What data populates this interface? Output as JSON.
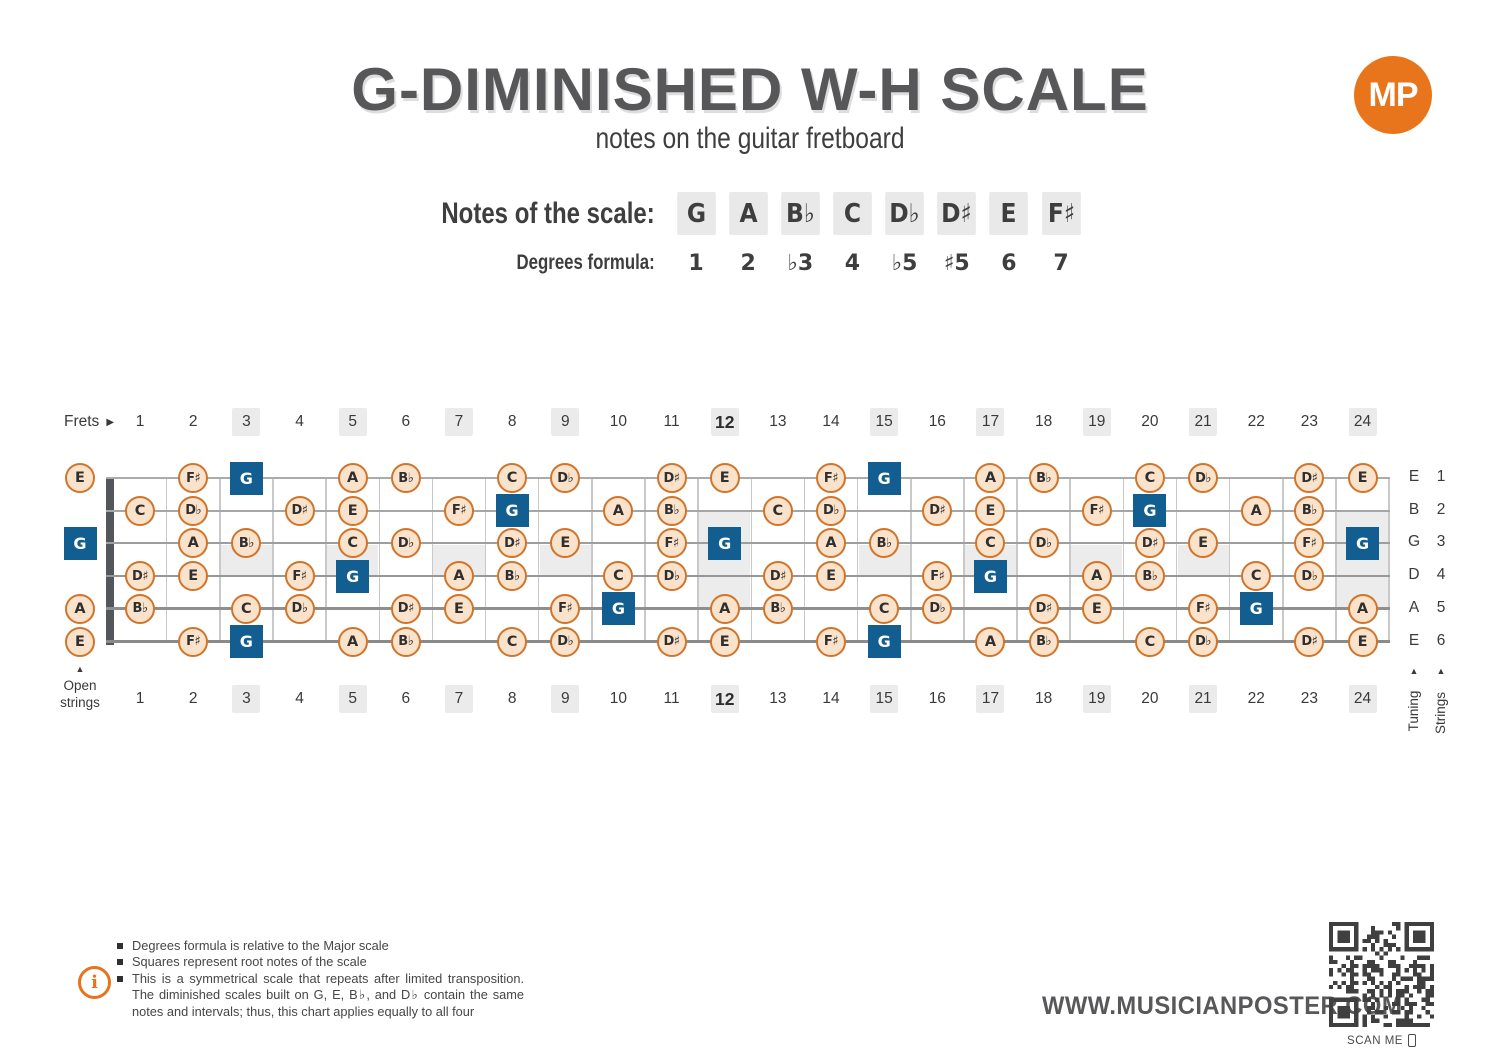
{
  "header": {
    "title": "G-DIMINISHED W-H SCALE",
    "subtitle": "notes on the guitar fretboard",
    "logo_text": "MP"
  },
  "scale": {
    "notes_label": "Notes of the scale:",
    "notes": [
      "G",
      "A",
      "B♭",
      "C",
      "D♭",
      "D♯",
      "E",
      "F♯"
    ],
    "degrees_label": "Degrees formula:",
    "degrees": [
      "1",
      "2",
      "♭3",
      "4",
      "♭5",
      "♯5",
      "6",
      "7"
    ]
  },
  "fretboard": {
    "frets_label": "Frets",
    "fret_count": 24,
    "highlight_frets": [
      3,
      5,
      7,
      9,
      12,
      15,
      17,
      19,
      21,
      24
    ],
    "bold_fret": 12,
    "single_inlay_frets": [
      3,
      5,
      7,
      9,
      15,
      17,
      19,
      21
    ],
    "double_inlay_frets": [
      12,
      24
    ],
    "open_strings_label": [
      "Open",
      "strings"
    ],
    "tuning_label": "Tuning",
    "strings_label": "Strings",
    "strings": [
      {
        "tuning": "E",
        "number": 1,
        "open": {
          "n": "E"
        },
        "notes": [
          {
            "f": 2,
            "n": "F♯"
          },
          {
            "f": 3,
            "n": "G",
            "r": true
          },
          {
            "f": 5,
            "n": "A"
          },
          {
            "f": 6,
            "n": "B♭"
          },
          {
            "f": 8,
            "n": "C"
          },
          {
            "f": 9,
            "n": "D♭"
          },
          {
            "f": 11,
            "n": "D♯"
          },
          {
            "f": 12,
            "n": "E"
          },
          {
            "f": 14,
            "n": "F♯"
          },
          {
            "f": 15,
            "n": "G",
            "r": true
          },
          {
            "f": 17,
            "n": "A"
          },
          {
            "f": 18,
            "n": "B♭"
          },
          {
            "f": 20,
            "n": "C"
          },
          {
            "f": 21,
            "n": "D♭"
          },
          {
            "f": 23,
            "n": "D♯"
          },
          {
            "f": 24,
            "n": "E"
          }
        ]
      },
      {
        "tuning": "B",
        "number": 2,
        "open": null,
        "notes": [
          {
            "f": 1,
            "n": "C"
          },
          {
            "f": 2,
            "n": "D♭"
          },
          {
            "f": 4,
            "n": "D♯"
          },
          {
            "f": 5,
            "n": "E"
          },
          {
            "f": 7,
            "n": "F♯"
          },
          {
            "f": 8,
            "n": "G",
            "r": true
          },
          {
            "f": 10,
            "n": "A"
          },
          {
            "f": 11,
            "n": "B♭"
          },
          {
            "f": 13,
            "n": "C"
          },
          {
            "f": 14,
            "n": "D♭"
          },
          {
            "f": 16,
            "n": "D♯"
          },
          {
            "f": 17,
            "n": "E"
          },
          {
            "f": 19,
            "n": "F♯"
          },
          {
            "f": 20,
            "n": "G",
            "r": true
          },
          {
            "f": 22,
            "n": "A"
          },
          {
            "f": 23,
            "n": "B♭"
          }
        ]
      },
      {
        "tuning": "G",
        "number": 3,
        "open": {
          "n": "G",
          "r": true
        },
        "notes": [
          {
            "f": 2,
            "n": "A"
          },
          {
            "f": 3,
            "n": "B♭"
          },
          {
            "f": 5,
            "n": "C"
          },
          {
            "f": 6,
            "n": "D♭"
          },
          {
            "f": 8,
            "n": "D♯"
          },
          {
            "f": 9,
            "n": "E"
          },
          {
            "f": 11,
            "n": "F♯"
          },
          {
            "f": 12,
            "n": "G",
            "r": true
          },
          {
            "f": 14,
            "n": "A"
          },
          {
            "f": 15,
            "n": "B♭"
          },
          {
            "f": 17,
            "n": "C"
          },
          {
            "f": 18,
            "n": "D♭"
          },
          {
            "f": 20,
            "n": "D♯"
          },
          {
            "f": 21,
            "n": "E"
          },
          {
            "f": 23,
            "n": "F♯"
          },
          {
            "f": 24,
            "n": "G",
            "r": true
          }
        ]
      },
      {
        "tuning": "D",
        "number": 4,
        "open": null,
        "notes": [
          {
            "f": 1,
            "n": "D♯"
          },
          {
            "f": 2,
            "n": "E"
          },
          {
            "f": 4,
            "n": "F♯"
          },
          {
            "f": 5,
            "n": "G",
            "r": true
          },
          {
            "f": 7,
            "n": "A"
          },
          {
            "f": 8,
            "n": "B♭"
          },
          {
            "f": 10,
            "n": "C"
          },
          {
            "f": 11,
            "n": "D♭"
          },
          {
            "f": 13,
            "n": "D♯"
          },
          {
            "f": 14,
            "n": "E"
          },
          {
            "f": 16,
            "n": "F♯"
          },
          {
            "f": 17,
            "n": "G",
            "r": true
          },
          {
            "f": 19,
            "n": "A"
          },
          {
            "f": 20,
            "n": "B♭"
          },
          {
            "f": 22,
            "n": "C"
          },
          {
            "f": 23,
            "n": "D♭"
          }
        ]
      },
      {
        "tuning": "A",
        "number": 5,
        "open": {
          "n": "A"
        },
        "notes": [
          {
            "f": 1,
            "n": "B♭"
          },
          {
            "f": 3,
            "n": "C"
          },
          {
            "f": 4,
            "n": "D♭"
          },
          {
            "f": 6,
            "n": "D♯"
          },
          {
            "f": 7,
            "n": "E"
          },
          {
            "f": 9,
            "n": "F♯"
          },
          {
            "f": 10,
            "n": "G",
            "r": true
          },
          {
            "f": 12,
            "n": "A"
          },
          {
            "f": 13,
            "n": "B♭"
          },
          {
            "f": 15,
            "n": "C"
          },
          {
            "f": 16,
            "n": "D♭"
          },
          {
            "f": 18,
            "n": "D♯"
          },
          {
            "f": 19,
            "n": "E"
          },
          {
            "f": 21,
            "n": "F♯"
          },
          {
            "f": 22,
            "n": "G",
            "r": true
          },
          {
            "f": 24,
            "n": "A"
          }
        ]
      },
      {
        "tuning": "E",
        "number": 6,
        "open": {
          "n": "E"
        },
        "notes": [
          {
            "f": 2,
            "n": "F♯"
          },
          {
            "f": 3,
            "n": "G",
            "r": true
          },
          {
            "f": 5,
            "n": "A"
          },
          {
            "f": 6,
            "n": "B♭"
          },
          {
            "f": 8,
            "n": "C"
          },
          {
            "f": 9,
            "n": "D♭"
          },
          {
            "f": 11,
            "n": "D♯"
          },
          {
            "f": 12,
            "n": "E"
          },
          {
            "f": 14,
            "n": "F♯"
          },
          {
            "f": 15,
            "n": "G",
            "r": true
          },
          {
            "f": 17,
            "n": "A"
          },
          {
            "f": 18,
            "n": "B♭"
          },
          {
            "f": 20,
            "n": "C"
          },
          {
            "f": 21,
            "n": "D♭"
          },
          {
            "f": 23,
            "n": "D♯"
          },
          {
            "f": 24,
            "n": "E"
          }
        ]
      }
    ]
  },
  "footer": {
    "info_icon_text": "i",
    "notes": [
      "Degrees formula is relative to the Major scale",
      "Squares represent root notes of the scale",
      "This is a symmetrical scale that repeats after limited transposition. The diminished scales built on G, E, B♭, and D♭ contain the same notes and intervals; thus, this chart applies equally to all four"
    ],
    "website": "WWW.MUSICIANPOSTER.COM",
    "scan_label": "SCAN ME"
  },
  "colors": {
    "accent_orange": "#E8751C",
    "note_circle_border": "#D1742B",
    "note_circle_fill": "#FBE3CB",
    "root_blue": "#135E90",
    "highlight_gray": "#EBEBEB",
    "title_gray": "#57575A"
  }
}
